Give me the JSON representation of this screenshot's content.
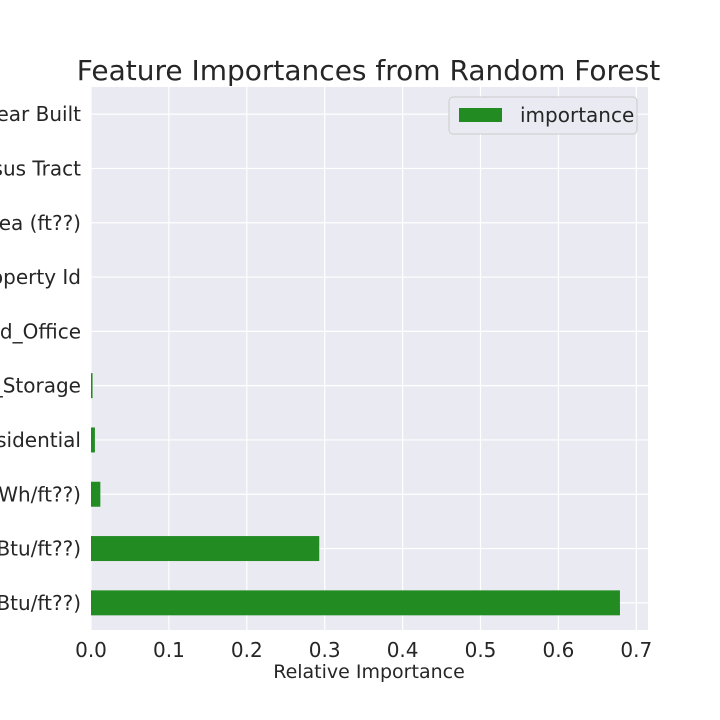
{
  "chart_data": {
    "type": "bar",
    "orientation": "horizontal",
    "title": "Feature Importances from Random Forest",
    "xlabel": "Relative Importance",
    "ylabel": "",
    "categories": [
      "Year Built",
      "sus Tract",
      "ea (ft??)",
      "operty Id",
      "d_Office",
      "_Storage",
      "sidential",
      "Wh/ft??)",
      "Btu/ft??)",
      "Btu/ft??)"
    ],
    "series": [
      {
        "name": "importance",
        "values": [
          0.0,
          0.0,
          0.0,
          0.0,
          0.0,
          0.002,
          0.005,
          0.012,
          0.293,
          0.679
        ]
      }
    ],
    "xlim": [
      0.0,
      0.715
    ],
    "xticks": [
      "0.0",
      "0.1",
      "0.2",
      "0.3",
      "0.4",
      "0.5",
      "0.6",
      "0.7"
    ],
    "xtick_values": [
      0.0,
      0.1,
      0.2,
      0.3,
      0.4,
      0.5,
      0.6,
      0.7
    ],
    "grid": true,
    "legend_position": "top-right",
    "colors": {
      "bar": "#228b22",
      "background": "#eaeaf2",
      "grid": "#ffffff",
      "text": "#262626"
    }
  }
}
